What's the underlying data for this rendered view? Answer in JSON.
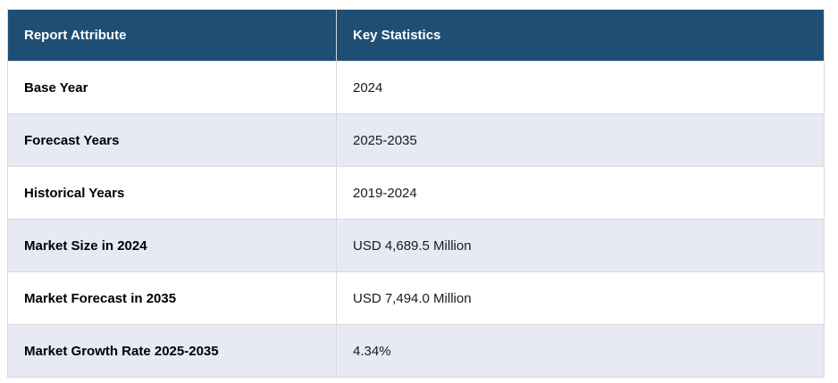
{
  "table": {
    "columns": [
      {
        "label": "Report Attribute"
      },
      {
        "label": "Key Statistics"
      }
    ],
    "rows": [
      {
        "attribute": "Base Year",
        "value": "2024"
      },
      {
        "attribute": "Forecast Years",
        "value": "2025-2035"
      },
      {
        "attribute": "Historical Years",
        "value": "2019-2024"
      },
      {
        "attribute": "Market Size in 2024",
        "value": "USD 4,689.5 Million"
      },
      {
        "attribute": "Market Forecast in 2035",
        "value": "USD 7,494.0 Million"
      },
      {
        "attribute": "Market Growth Rate 2025-2035",
        "value": "4.34%"
      }
    ]
  },
  "colors": {
    "header_bg": "#1F4E74",
    "header_text": "#FFFFFF",
    "row_bg": "#FFFFFF",
    "row_alt_bg": "#E7E9F4",
    "border": "#D9D9D9",
    "attribute_text": "#000000",
    "value_text": "#1B1B1B"
  },
  "chart_data": {
    "type": "table",
    "title": "",
    "columns": [
      "Report Attribute",
      "Key Statistics"
    ],
    "rows": [
      [
        "Base Year",
        "2024"
      ],
      [
        "Forecast Years",
        "2025-2035"
      ],
      [
        "Historical Years",
        "2019-2024"
      ],
      [
        "Market Size in 2024",
        "USD 4,689.5 Million"
      ],
      [
        "Market Forecast in 2035",
        "USD 7,494.0 Million"
      ],
      [
        "Market Growth Rate 2025-2035",
        "4.34%"
      ]
    ],
    "notes": {
      "base_year": 2024,
      "forecast_start": 2025,
      "forecast_end": 2035,
      "historical_start": 2019,
      "historical_end": 2024,
      "market_size_2024_usd_million": 4689.5,
      "market_forecast_2035_usd_million": 7494.0,
      "cagr_2025_2035_percent": 4.34
    }
  }
}
